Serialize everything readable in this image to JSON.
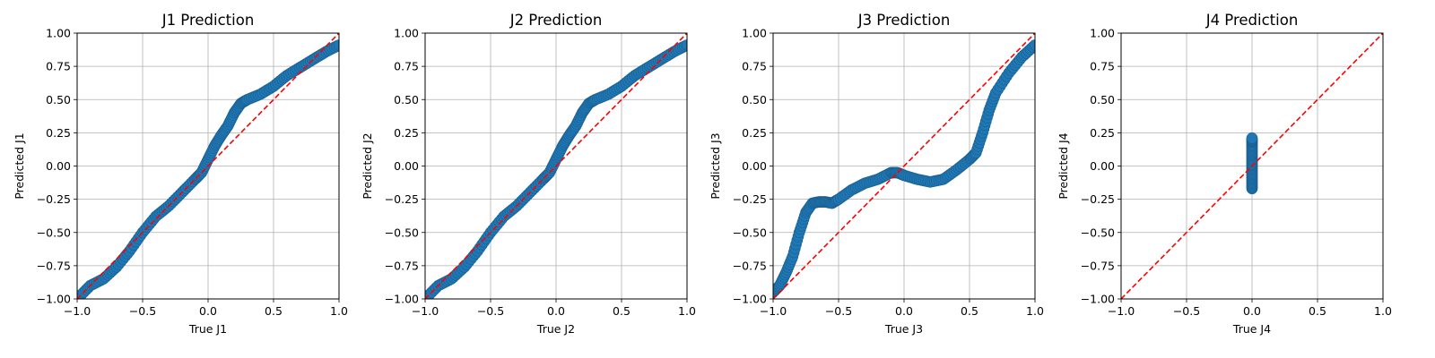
{
  "chart_data": [
    {
      "type": "scatter",
      "title": "J1 Prediction",
      "xlabel": "True J1",
      "ylabel": "Predicted J1",
      "xlim": [
        -1.0,
        1.0
      ],
      "ylim": [
        -1.0,
        1.0
      ],
      "grid": true,
      "x_ticks": [
        "−1.0",
        "−0.5",
        "0.0",
        "0.5",
        "1.0"
      ],
      "y_ticks": [
        "−1.00",
        "−0.75",
        "−0.50",
        "−0.25",
        "0.00",
        "0.25",
        "0.50",
        "0.75",
        "1.00"
      ],
      "reference_line": {
        "from": [
          -1,
          -1
        ],
        "to": [
          1,
          1
        ],
        "color": "#ff0000",
        "style": "dashed"
      },
      "series": [
        {
          "color": "#1f77b4",
          "points": [
            [
              -1.0,
              -1.0
            ],
            [
              -0.9,
              -0.9
            ],
            [
              -0.8,
              -0.85
            ],
            [
              -0.7,
              -0.76
            ],
            [
              -0.6,
              -0.64
            ],
            [
              -0.5,
              -0.5
            ],
            [
              -0.4,
              -0.38
            ],
            [
              -0.3,
              -0.3
            ],
            [
              -0.2,
              -0.2
            ],
            [
              -0.1,
              -0.1
            ],
            [
              -0.05,
              -0.05
            ],
            [
              0.0,
              0.05
            ],
            [
              0.05,
              0.15
            ],
            [
              0.1,
              0.23
            ],
            [
              0.15,
              0.3
            ],
            [
              0.2,
              0.4
            ],
            [
              0.25,
              0.47
            ],
            [
              0.3,
              0.5
            ],
            [
              0.4,
              0.54
            ],
            [
              0.5,
              0.6
            ],
            [
              0.6,
              0.68
            ],
            [
              0.7,
              0.74
            ],
            [
              0.8,
              0.8
            ],
            [
              0.9,
              0.86
            ],
            [
              1.0,
              0.91
            ]
          ]
        }
      ]
    },
    {
      "type": "scatter",
      "title": "J2 Prediction",
      "xlabel": "True J2",
      "ylabel": "Predicted J2",
      "xlim": [
        -1.0,
        1.0
      ],
      "ylim": [
        -1.0,
        1.0
      ],
      "grid": true,
      "x_ticks": [
        "−1.0",
        "−0.5",
        "0.0",
        "0.5",
        "1.0"
      ],
      "y_ticks": [
        "−1.00",
        "−0.75",
        "−0.50",
        "−0.25",
        "0.00",
        "0.25",
        "0.50",
        "0.75",
        "1.00"
      ],
      "reference_line": {
        "from": [
          -1,
          -1
        ],
        "to": [
          1,
          1
        ],
        "color": "#ff0000",
        "style": "dashed"
      },
      "series": [
        {
          "color": "#1f77b4",
          "points": [
            [
              -1.0,
              -1.0
            ],
            [
              -0.9,
              -0.9
            ],
            [
              -0.8,
              -0.85
            ],
            [
              -0.7,
              -0.76
            ],
            [
              -0.6,
              -0.64
            ],
            [
              -0.5,
              -0.5
            ],
            [
              -0.4,
              -0.38
            ],
            [
              -0.3,
              -0.3
            ],
            [
              -0.2,
              -0.2
            ],
            [
              -0.1,
              -0.1
            ],
            [
              -0.05,
              -0.05
            ],
            [
              0.0,
              0.05
            ],
            [
              0.05,
              0.15
            ],
            [
              0.1,
              0.23
            ],
            [
              0.15,
              0.3
            ],
            [
              0.2,
              0.4
            ],
            [
              0.25,
              0.47
            ],
            [
              0.3,
              0.5
            ],
            [
              0.4,
              0.54
            ],
            [
              0.5,
              0.6
            ],
            [
              0.6,
              0.68
            ],
            [
              0.7,
              0.74
            ],
            [
              0.8,
              0.8
            ],
            [
              0.9,
              0.86
            ],
            [
              1.0,
              0.91
            ]
          ]
        }
      ]
    },
    {
      "type": "scatter",
      "title": "J3 Prediction",
      "xlabel": "True J3",
      "ylabel": "Predicted J3",
      "xlim": [
        -1.0,
        1.0
      ],
      "ylim": [
        -1.0,
        1.0
      ],
      "grid": true,
      "x_ticks": [
        "−1.0",
        "−0.5",
        "0.0",
        "0.5",
        "1.0"
      ],
      "y_ticks": [
        "−1.00",
        "−0.75",
        "−0.50",
        "−0.25",
        "0.00",
        "0.25",
        "0.50",
        "0.75",
        "1.00"
      ],
      "reference_line": {
        "from": [
          -1,
          -1
        ],
        "to": [
          1,
          1
        ],
        "color": "#ff0000",
        "style": "dashed"
      },
      "series": [
        {
          "color": "#1f77b4",
          "points": [
            [
              -1.0,
              -0.95
            ],
            [
              -0.95,
              -0.9
            ],
            [
              -0.9,
              -0.8
            ],
            [
              -0.85,
              -0.68
            ],
            [
              -0.8,
              -0.5
            ],
            [
              -0.75,
              -0.35
            ],
            [
              -0.7,
              -0.28
            ],
            [
              -0.65,
              -0.27
            ],
            [
              -0.6,
              -0.27
            ],
            [
              -0.55,
              -0.28
            ],
            [
              -0.5,
              -0.25
            ],
            [
              -0.4,
              -0.18
            ],
            [
              -0.3,
              -0.13
            ],
            [
              -0.2,
              -0.1
            ],
            [
              -0.1,
              -0.05
            ],
            [
              -0.05,
              -0.05
            ],
            [
              0.0,
              -0.07
            ],
            [
              0.1,
              -0.1
            ],
            [
              0.2,
              -0.12
            ],
            [
              0.3,
              -0.1
            ],
            [
              0.4,
              -0.03
            ],
            [
              0.5,
              0.05
            ],
            [
              0.55,
              0.1
            ],
            [
              0.6,
              0.25
            ],
            [
              0.65,
              0.42
            ],
            [
              0.7,
              0.55
            ],
            [
              0.8,
              0.7
            ],
            [
              0.9,
              0.82
            ],
            [
              1.0,
              0.91
            ]
          ]
        }
      ]
    },
    {
      "type": "scatter",
      "title": "J4 Prediction",
      "xlabel": "True J4",
      "ylabel": "Predicted J4",
      "xlim": [
        -1.0,
        1.0
      ],
      "ylim": [
        -1.0,
        1.0
      ],
      "grid": true,
      "x_ticks": [
        "−1.0",
        "−0.5",
        "0.0",
        "0.5",
        "1.0"
      ],
      "y_ticks": [
        "−1.00",
        "−0.75",
        "−0.50",
        "−0.25",
        "0.00",
        "0.25",
        "0.50",
        "0.75",
        "1.00"
      ],
      "reference_line": {
        "from": [
          -1,
          -1
        ],
        "to": [
          1,
          1
        ],
        "color": "#ff0000",
        "style": "dashed"
      },
      "series": [
        {
          "color": "#1f77b4",
          "points": [
            [
              0.0,
              -0.17
            ],
            [
              0.0,
              -0.12
            ],
            [
              0.0,
              -0.07
            ],
            [
              0.0,
              -0.02
            ],
            [
              0.0,
              0.03
            ],
            [
              0.0,
              0.08
            ],
            [
              0.0,
              0.13
            ],
            [
              0.0,
              0.18
            ],
            [
              0.0,
              0.21
            ]
          ]
        }
      ]
    }
  ]
}
